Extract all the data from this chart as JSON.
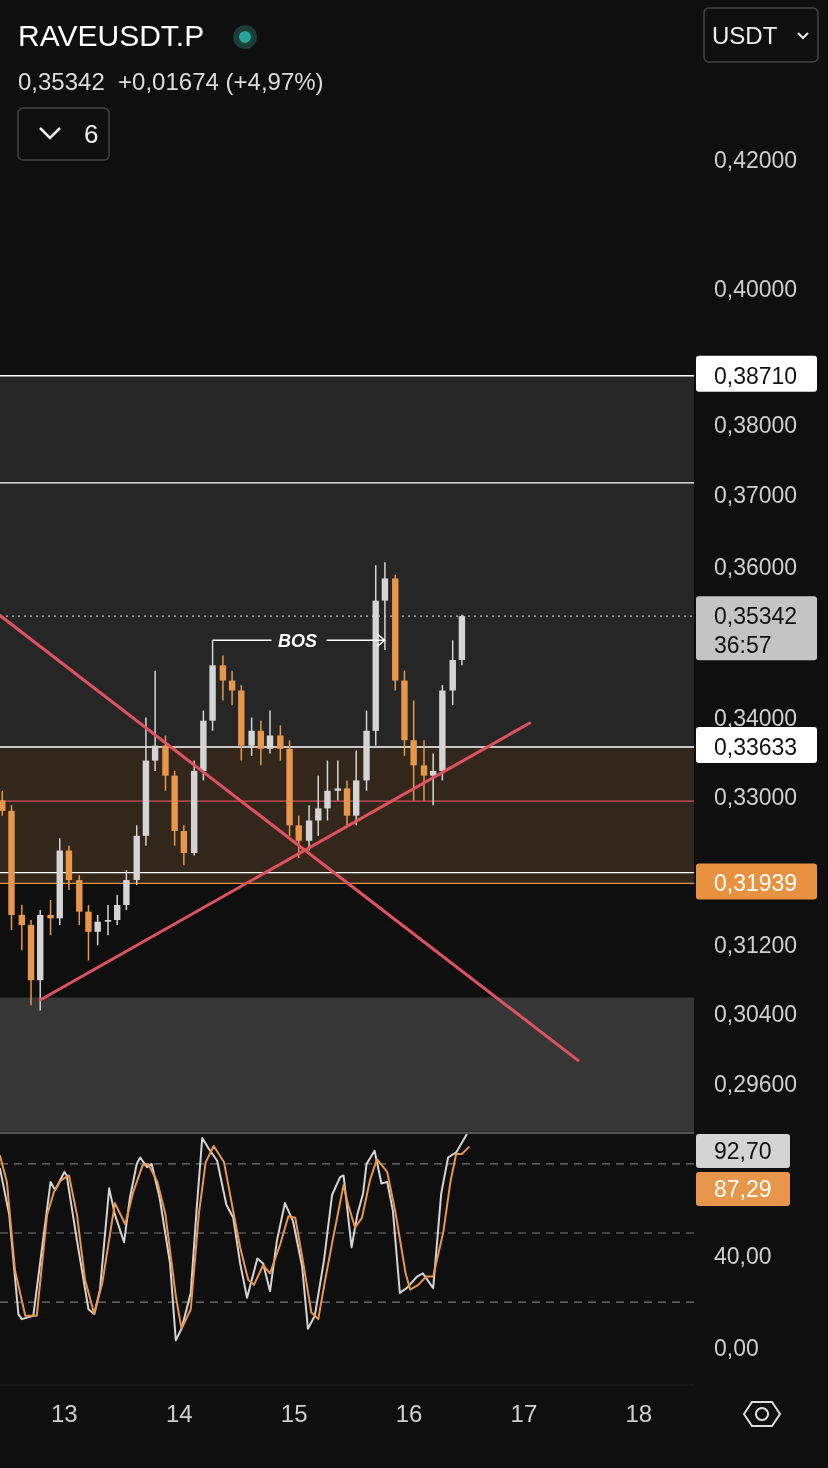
{
  "chart_data": [
    {
      "type": "candlestick",
      "title": "RAVEUSDT.P",
      "subtitle": "0,35342  +0,01674 (+4,97%)",
      "x": [
        12.46,
        12.54,
        12.63,
        12.71,
        12.79,
        12.88,
        12.96,
        13.04,
        13.13,
        13.21,
        13.29,
        13.38,
        13.46,
        13.54,
        13.63,
        13.71,
        13.79,
        13.88,
        13.96,
        14.04,
        14.13,
        14.21,
        14.29,
        14.38,
        14.46,
        14.54,
        14.63,
        14.71,
        14.79,
        14.88,
        14.96,
        15.04,
        15.13,
        15.21,
        15.29,
        15.38,
        15.46,
        15.54,
        15.63,
        15.71,
        15.79,
        15.88,
        15.96,
        16.04,
        16.13,
        16.21,
        16.29,
        16.38,
        16.46
      ],
      "ohlc": [
        [
          0.3296,
          0.3308,
          0.3277,
          0.3283
        ],
        [
          0.3283,
          0.329,
          0.3138,
          0.3156
        ],
        [
          0.3156,
          0.3168,
          0.3114,
          0.3144
        ],
        [
          0.3144,
          0.315,
          0.305,
          0.3079
        ],
        [
          0.3079,
          0.3162,
          0.3044,
          0.3156
        ],
        [
          0.3156,
          0.3174,
          0.3132,
          0.3152
        ],
        [
          0.3152,
          0.3249,
          0.3144,
          0.3234
        ],
        [
          0.3234,
          0.324,
          0.3186,
          0.3198
        ],
        [
          0.3198,
          0.3204,
          0.3144,
          0.316
        ],
        [
          0.316,
          0.3168,
          0.3102,
          0.3136
        ],
        [
          0.3136,
          0.3156,
          0.312,
          0.3148
        ],
        [
          0.3148,
          0.3168,
          0.3132,
          0.315
        ],
        [
          0.315,
          0.318,
          0.3144,
          0.3168
        ],
        [
          0.3168,
          0.321,
          0.3162,
          0.3198
        ],
        [
          0.3198,
          0.3265,
          0.3192,
          0.3252
        ],
        [
          0.3252,
          0.3401,
          0.324,
          0.3346
        ],
        [
          0.3346,
          0.3462,
          0.3333,
          0.3365
        ],
        [
          0.3365,
          0.3378,
          0.3308,
          0.3327
        ],
        [
          0.3327,
          0.3333,
          0.324,
          0.3258
        ],
        [
          0.3258,
          0.3265,
          0.3216,
          0.3231
        ],
        [
          0.3231,
          0.3346,
          0.3228,
          0.3333
        ],
        [
          0.3333,
          0.341,
          0.3321,
          0.3397
        ],
        [
          0.3397,
          0.3502,
          0.3384,
          0.3469
        ],
        [
          0.3469,
          0.3482,
          0.3423,
          0.3449
        ],
        [
          0.3449,
          0.3462,
          0.3417,
          0.3436
        ],
        [
          0.3436,
          0.3443,
          0.3346,
          0.3365
        ],
        [
          0.3365,
          0.3401,
          0.3352,
          0.3384
        ],
        [
          0.3384,
          0.3397,
          0.334,
          0.3361
        ],
        [
          0.3361,
          0.341,
          0.3355,
          0.3378
        ],
        [
          0.3378,
          0.3391,
          0.3346,
          0.3361
        ],
        [
          0.3361,
          0.3372,
          0.3252,
          0.3265
        ],
        [
          0.3265,
          0.3277,
          0.3225,
          0.3246
        ],
        [
          0.3246,
          0.329,
          0.3234,
          0.3271
        ],
        [
          0.3271,
          0.3327,
          0.3252,
          0.3286
        ],
        [
          0.3286,
          0.3346,
          0.3271,
          0.3308
        ],
        [
          0.3308,
          0.3346,
          0.3296,
          0.3311
        ],
        [
          0.3311,
          0.3321,
          0.3265,
          0.3277
        ],
        [
          0.3277,
          0.3359,
          0.3265,
          0.3321
        ],
        [
          0.3321,
          0.341,
          0.3308,
          0.3384
        ],
        [
          0.3384,
          0.3603,
          0.3365,
          0.3555
        ],
        [
          0.3555,
          0.3607,
          0.3489,
          0.3585
        ],
        [
          0.3585,
          0.359,
          0.3436,
          0.3449
        ],
        [
          0.3449,
          0.3462,
          0.3352,
          0.3372
        ],
        [
          0.3372,
          0.3423,
          0.3296,
          0.334
        ],
        [
          0.334,
          0.3372,
          0.3296,
          0.3327
        ],
        [
          0.3327,
          0.3355,
          0.329,
          0.3333
        ],
        [
          0.3333,
          0.3443,
          0.3321,
          0.3436
        ],
        [
          0.3436,
          0.3502,
          0.3417,
          0.3476
        ],
        [
          0.3476,
          0.3536,
          0.3469,
          0.35342
        ]
      ],
      "colors": [
        "#e8964a",
        "#e8964a",
        "#e8964a",
        "#e8964a",
        "#d4d4d4",
        "#e8964a",
        "#d4d4d4",
        "#e8964a",
        "#e8964a",
        "#e8964a",
        "#d4d4d4",
        "#d4d4d4",
        "#d4d4d4",
        "#d4d4d4",
        "#d4d4d4",
        "#d4d4d4",
        "#d4d4d4",
        "#e8964a",
        "#e8964a",
        "#e8964a",
        "#d4d4d4",
        "#d4d4d4",
        "#d4d4d4",
        "#e8964a",
        "#e8964a",
        "#e8964a",
        "#d4d4d4",
        "#e8964a",
        "#d4d4d4",
        "#e8964a",
        "#e8964a",
        "#e8964a",
        "#d4d4d4",
        "#d4d4d4",
        "#d4d4d4",
        "#d4d4d4",
        "#e8964a",
        "#d4d4d4",
        "#d4d4d4",
        "#d4d4d4",
        "#d4d4d4",
        "#e8964a",
        "#e8964a",
        "#e8964a",
        "#e8964a",
        "#d4d4d4",
        "#d4d4d4",
        "#d4d4d4",
        "#d4d4d4"
      ],
      "series": [
        {
          "type": "line",
          "color": "#e0525e",
          "x": [
            12.44,
            17.47
          ],
          "values": [
            0.3535,
            0.2987
          ]
        },
        {
          "type": "line",
          "color": "#e0525e",
          "x": [
            12.79,
            17.05
          ],
          "values": [
            0.3056,
            0.3394
          ]
        }
      ],
      "log": "y",
      "xlim": [
        12.44,
        18.48
      ],
      "ylim": [
        0.2907,
        0.4463
      ],
      "yticks": [
        {
          "value": 0.296,
          "label": "0,29600"
        },
        {
          "value": 0.304,
          "label": "0,30400"
        },
        {
          "value": 0.312,
          "label": "0,31200"
        },
        {
          "value": 0.33,
          "label": "0,33000"
        },
        {
          "value": 0.34,
          "label": "0,34000"
        },
        {
          "value": 0.36,
          "label": "0,36000"
        },
        {
          "value": 0.37,
          "label": "0,37000"
        },
        {
          "value": 0.38,
          "label": "0,38000"
        },
        {
          "value": 0.4,
          "label": "0,40000"
        },
        {
          "value": 0.42,
          "label": "0,42000"
        }
      ],
      "tick_labels": "y",
      "grid": false,
      "bands": [
        {
          "axis": "y",
          "from": 0.33633,
          "to": 0.3871,
          "color": "#262626"
        },
        {
          "axis": "y",
          "from": 0.31939,
          "to": 0.33633,
          "color": "#33271c"
        },
        {
          "axis": "y",
          "from": 0.2907,
          "to": 0.3059,
          "color": "#363636"
        }
      ],
      "ref_lines": [
        {
          "axis": "y",
          "value": 0.3871,
          "label": "0,38710",
          "color": "#ffffff",
          "line_style": "solid"
        },
        {
          "axis": "y",
          "value": 0.3717,
          "color": "#ffffff",
          "line_style": "solid"
        },
        {
          "axis": "y",
          "value": 0.35342,
          "label": "0,35342\n36:57",
          "color": "#c4c4c4",
          "line_style": "dotted"
        },
        {
          "axis": "y",
          "value": 0.33633,
          "label": "0,33633",
          "color": "#ffffff",
          "line_style": "solid"
        },
        {
          "axis": "y",
          "value": 0.3295,
          "color": "#d9505c",
          "line_style": "solid"
        },
        {
          "axis": "y",
          "value": 0.3207,
          "color": "#ffffff",
          "line_style": "solid"
        },
        {
          "axis": "y",
          "value": 0.31939,
          "label": "0,31939",
          "color": "#e8913f",
          "line_style": "solid"
        }
      ],
      "annotations": [
        {
          "text": "BOS",
          "x": 14.29,
          "y": 0.3502
        },
        "6",
        "USDT"
      ]
    },
    {
      "type": "line",
      "xlim": [
        12.44,
        18.48
      ],
      "ylim": [
        -16,
        93
      ],
      "xticks": [
        13,
        14,
        15,
        16,
        17,
        18
      ],
      "yticks": [
        {
          "value": 0,
          "label": "0,00"
        },
        {
          "value": 40,
          "label": "40,00"
        }
      ],
      "grid": false,
      "ref_lines": [
        {
          "axis": "y",
          "value": 80,
          "color": "#777777",
          "line_style": "dashed"
        },
        {
          "axis": "y",
          "value": 50,
          "color": "#555555",
          "line_style": "dashed"
        },
        {
          "axis": "y",
          "value": 20,
          "color": "#777777",
          "line_style": "dashed"
        }
      ],
      "series": [
        {
          "color": "#d4d4d4",
          "x": [
            12.44,
            12.52,
            12.6,
            12.63,
            12.73,
            12.88,
            12.92,
            13.0,
            13.02,
            13.11,
            13.21,
            13.26,
            13.31,
            13.39,
            13.44,
            13.52,
            13.57,
            13.63,
            13.66,
            13.72,
            13.76,
            13.83,
            13.92,
            13.97,
            14.02,
            14.1,
            14.15,
            14.2,
            14.26,
            14.33,
            14.41,
            14.47,
            14.53,
            14.59,
            14.68,
            14.73,
            14.79,
            14.85,
            14.92,
            14.99,
            15.07,
            15.12,
            15.18,
            15.26,
            15.33,
            15.4,
            15.43,
            15.5,
            15.55,
            15.6,
            15.63,
            15.7,
            15.76,
            15.81,
            15.86,
            15.92,
            15.98,
            16.07,
            16.12,
            16.21,
            16.28,
            16.34,
            16.41,
            16.5
          ],
          "values": [
            77.9,
            58.0,
            14.8,
            12.6,
            14.1,
            72.2,
            68.7,
            76.5,
            75.0,
            46.7,
            16.9,
            14.8,
            25.4,
            69.4,
            58.0,
            46.0,
            65.1,
            80.0,
            82.8,
            78.6,
            80.0,
            65.1,
            36.8,
            3.4,
            8.4,
            24.0,
            59.4,
            91.3,
            86.4,
            81.4,
            62.3,
            56.6,
            36.8,
            21.9,
            38.9,
            36.8,
            24.7,
            46.7,
            63.0,
            55.2,
            35.3,
            8.4,
            14.1,
            38.2,
            66.5,
            74.3,
            75.0,
            43.8,
            58.0,
            67.2,
            80.0,
            85.7,
            71.5,
            72.2,
            59.4,
            24.0,
            26.1,
            31.1,
            32.5,
            26.1,
            67.2,
            82.8,
            85.0,
            92.7
          ]
        },
        {
          "color": "#e8964a",
          "x": [
            12.44,
            12.5,
            12.57,
            12.66,
            12.76,
            12.85,
            12.91,
            12.97,
            13.04,
            13.11,
            13.18,
            13.26,
            13.33,
            13.44,
            13.53,
            13.6,
            13.68,
            13.73,
            13.81,
            13.88,
            13.97,
            14.02,
            14.1,
            14.17,
            14.23,
            14.3,
            14.39,
            14.47,
            14.53,
            14.6,
            14.65,
            14.73,
            14.79,
            14.88,
            14.95,
            15.01,
            15.07,
            15.15,
            15.21,
            15.27,
            15.34,
            15.43,
            15.47,
            15.53,
            15.59,
            15.66,
            15.72,
            15.81,
            15.88,
            15.97,
            16.01,
            16.08,
            16.15,
            16.21,
            16.3,
            16.36,
            16.41,
            16.46,
            16.52
          ],
          "values": [
            83.5,
            72.2,
            33.9,
            14.1,
            14.1,
            58.0,
            67.9,
            72.9,
            75.0,
            58.0,
            29.7,
            14.8,
            28.2,
            63.0,
            53.8,
            67.9,
            79.3,
            80.0,
            72.2,
            58.0,
            22.6,
            8.4,
            16.9,
            58.0,
            80.7,
            87.8,
            80.7,
            59.4,
            43.8,
            29.7,
            27.5,
            36.0,
            32.5,
            45.3,
            57.3,
            56.6,
            39.6,
            15.5,
            12.6,
            29.7,
            48.1,
            70.8,
            62.3,
            52.4,
            56.6,
            72.9,
            82.1,
            76.5,
            59.4,
            32.5,
            25.4,
            27.5,
            31.1,
            31.1,
            50.9,
            72.2,
            84.3,
            84.3,
            87.3
          ]
        }
      ],
      "annotations": [
        "92,70",
        "87,29"
      ]
    }
  ]
}
